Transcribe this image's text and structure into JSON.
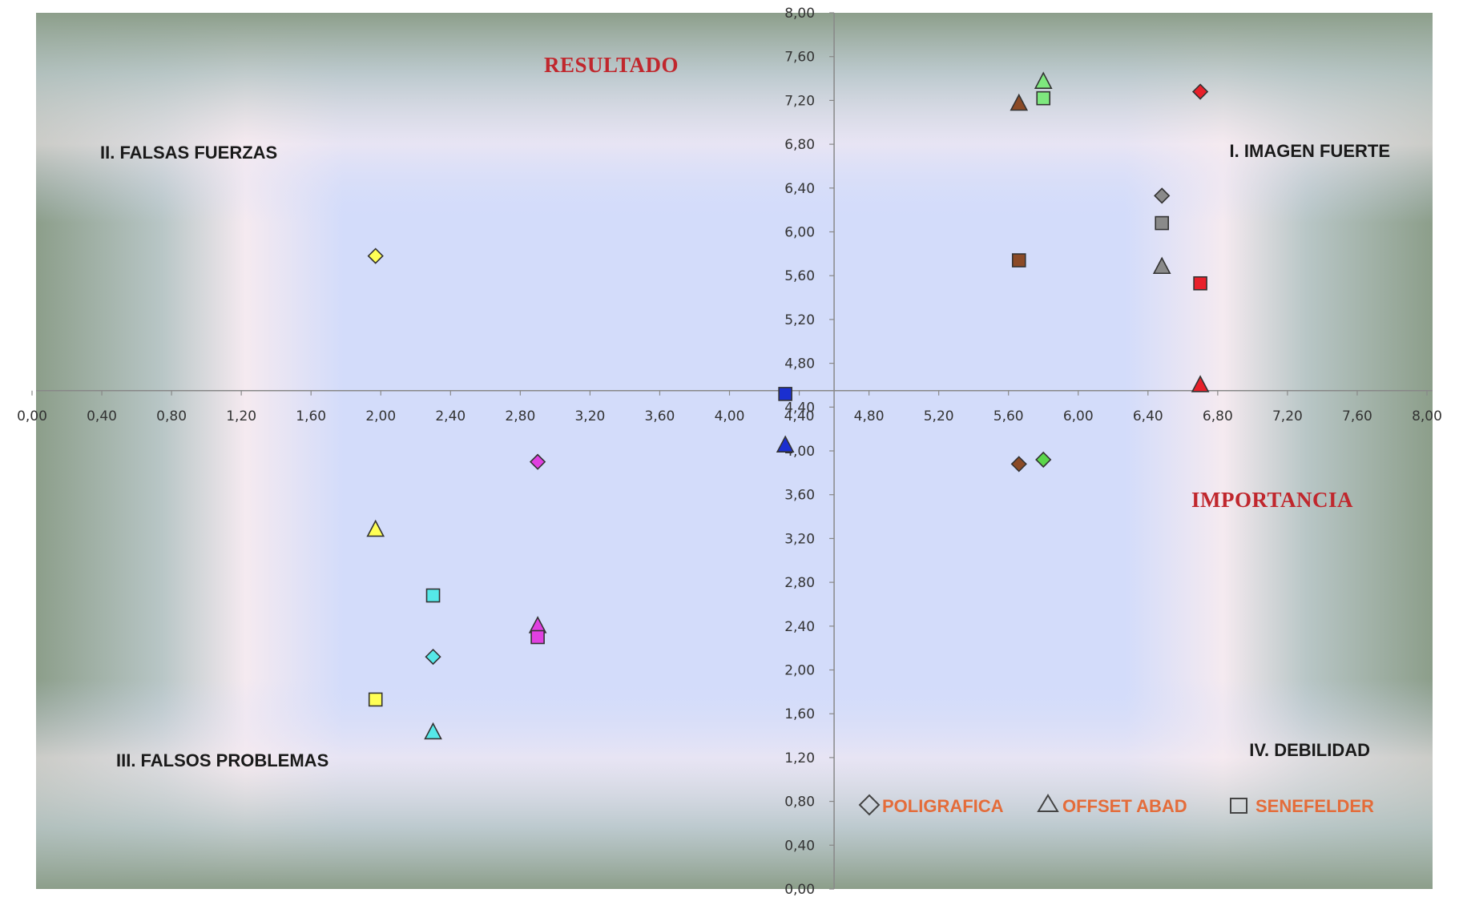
{
  "chart_data": {
    "type": "scatter",
    "x_axis_title": "IMPORTANCIA",
    "y_axis_title": "RESULTADO",
    "xlim": [
      0,
      8
    ],
    "ylim": [
      0,
      8
    ],
    "x_ticks": [
      "0,00",
      "0,40",
      "0,80",
      "1,20",
      "1,60",
      "2,00",
      "2,40",
      "2,80",
      "3,20",
      "3,60",
      "4,00",
      "4,40",
      "4,80",
      "5,20",
      "5,60",
      "6,00",
      "6,40",
      "6,80",
      "7,20",
      "7,60",
      "8,00"
    ],
    "y_ticks": [
      "0,00",
      "0,40",
      "0,80",
      "1,20",
      "1,60",
      "2,00",
      "2,40",
      "2,80",
      "3,20",
      "3,60",
      "4,00",
      "4,40",
      "4,80",
      "5,20",
      "5,60",
      "6,00",
      "6,40",
      "6,80",
      "7,20",
      "7,60",
      "8,00"
    ],
    "axis_cross": {
      "x": 4.6,
      "y": 4.55
    },
    "quadrants": [
      {
        "label": "I. IMAGEN FUERTE",
        "position": "top-right"
      },
      {
        "label": "II. FALSAS FUERZAS",
        "position": "top-left"
      },
      {
        "label": "III. FALSOS PROBLEMAS",
        "position": "bottom-left"
      },
      {
        "label": "IV. DEBILIDAD",
        "position": "bottom-right"
      }
    ],
    "legend": {
      "placement": "bottom-right",
      "entries": [
        {
          "name": "POLIGRAFICA",
          "marker": "diamond"
        },
        {
          "name": "OFFSET ABAD",
          "marker": "triangle"
        },
        {
          "name": "SENEFELDER",
          "marker": "square"
        }
      ]
    },
    "series": [
      {
        "name": "POLIGRAFICA",
        "marker": "diamond",
        "points": [
          {
            "x": 6.7,
            "y": 7.28,
            "color": "#e8202a"
          },
          {
            "x": 6.48,
            "y": 6.33,
            "color": "#8a8a8a"
          },
          {
            "x": 5.8,
            "y": 3.92,
            "color": "#5ad64a"
          },
          {
            "x": 5.66,
            "y": 3.88,
            "color": "#8b4a26"
          },
          {
            "x": 1.97,
            "y": 5.78,
            "color": "#ffff55"
          },
          {
            "x": 2.9,
            "y": 3.9,
            "color": "#e040e0"
          },
          {
            "x": 2.3,
            "y": 2.12,
            "color": "#55e8e8"
          }
        ]
      },
      {
        "name": "OFFSET ABAD",
        "marker": "triangle",
        "points": [
          {
            "x": 5.8,
            "y": 7.37,
            "color": "#7ee87e"
          },
          {
            "x": 5.66,
            "y": 7.17,
            "color": "#8b4a26"
          },
          {
            "x": 6.48,
            "y": 5.68,
            "color": "#8a8a8a"
          },
          {
            "x": 6.7,
            "y": 4.6,
            "color": "#e8202a"
          },
          {
            "x": 4.32,
            "y": 4.05,
            "color": "#1a2fd0"
          },
          {
            "x": 1.97,
            "y": 3.28,
            "color": "#ffff55"
          },
          {
            "x": 2.9,
            "y": 2.4,
            "color": "#e040e0"
          },
          {
            "x": 2.3,
            "y": 1.43,
            "color": "#55e8e8"
          }
        ]
      },
      {
        "name": "SENEFELDER",
        "marker": "square",
        "points": [
          {
            "x": 5.8,
            "y": 7.22,
            "color": "#7ee87e"
          },
          {
            "x": 6.48,
            "y": 6.08,
            "color": "#8a8a8a"
          },
          {
            "x": 5.66,
            "y": 5.74,
            "color": "#8b4a26"
          },
          {
            "x": 6.7,
            "y": 5.53,
            "color": "#e8202a"
          },
          {
            "x": 4.32,
            "y": 4.52,
            "color": "#1a2fd0"
          },
          {
            "x": 2.3,
            "y": 2.68,
            "color": "#55e8e8"
          },
          {
            "x": 2.9,
            "y": 2.3,
            "color": "#e040e0"
          },
          {
            "x": 1.97,
            "y": 1.73,
            "color": "#ffff55"
          }
        ]
      }
    ],
    "grid": false,
    "colors": {
      "plot_edge": "#8a9e88",
      "plot_center": "#d0dcfb",
      "glow": "#faeaf0",
      "axis_line": "#888888",
      "title_color": "#c0272d",
      "legend_text_color": "#e46c3a"
    }
  }
}
